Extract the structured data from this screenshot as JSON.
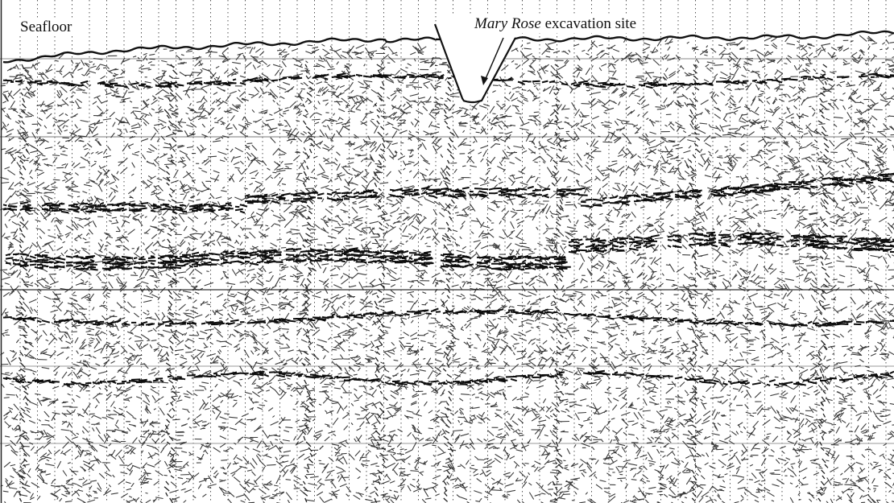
{
  "labels": {
    "seafloor": "Seafloor",
    "site_name": "Mary Rose",
    "site_suffix": " excavation site"
  },
  "colors": {
    "background": "#ffffff",
    "ink": "#111111",
    "horizontal_lines": "#6f6f6f",
    "dotted_gridlines": "#444444"
  },
  "marks": [
    {
      "name": "excavation-pit",
      "type": "depression"
    },
    {
      "name": "site-pointer-arrow",
      "type": "arrow"
    }
  ]
}
